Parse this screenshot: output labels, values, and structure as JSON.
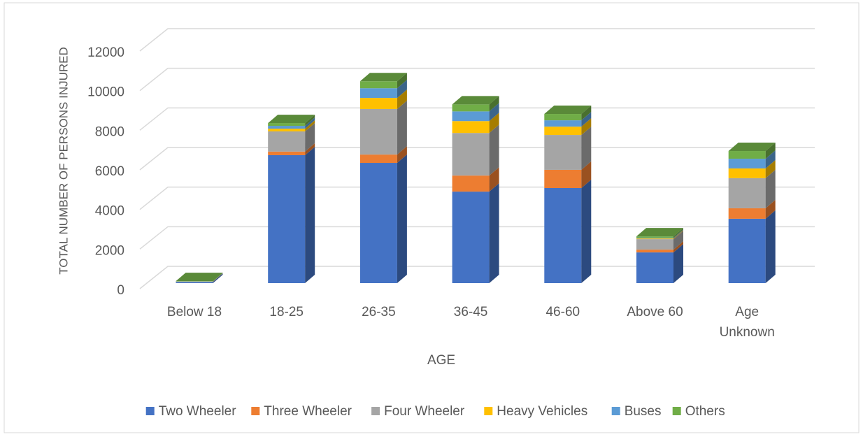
{
  "chart_data": {
    "type": "bar3d_stacked",
    "x_label": "AGE",
    "y_label": "TOTAL NUMBER OF PERSONS INJURED",
    "categories": [
      "Below 18",
      "18-25",
      "26-35",
      "36-45",
      "46-60",
      "Above 60",
      "Age Unknown"
    ],
    "series": [
      {
        "name": "Two Wheeler",
        "color": "#4472c4",
        "values": [
          60,
          6460,
          6070,
          4620,
          4800,
          1550,
          3250
        ]
      },
      {
        "name": "Three Wheeler",
        "color": "#ed7d31",
        "values": [
          5,
          180,
          420,
          810,
          920,
          140,
          530
        ]
      },
      {
        "name": "Four Wheeler",
        "color": "#a5a5a5",
        "values": [
          10,
          1020,
          2300,
          2150,
          1760,
          530,
          1520
        ]
      },
      {
        "name": "Heavy Vehicles",
        "color": "#ffc000",
        "values": [
          5,
          140,
          560,
          600,
          420,
          35,
          490
        ]
      },
      {
        "name": "Buses",
        "color": "#5b9bd5",
        "values": [
          5,
          140,
          490,
          490,
          320,
          35,
          490
        ]
      },
      {
        "name": "Others",
        "color": "#70ad47",
        "values": [
          15,
          140,
          350,
          350,
          320,
          70,
          390
        ]
      }
    ],
    "ylim": [
      0,
      12000
    ],
    "yticks": [
      0,
      2000,
      4000,
      6000,
      8000,
      10000,
      12000
    ],
    "grid": true,
    "legend": "bottom"
  }
}
